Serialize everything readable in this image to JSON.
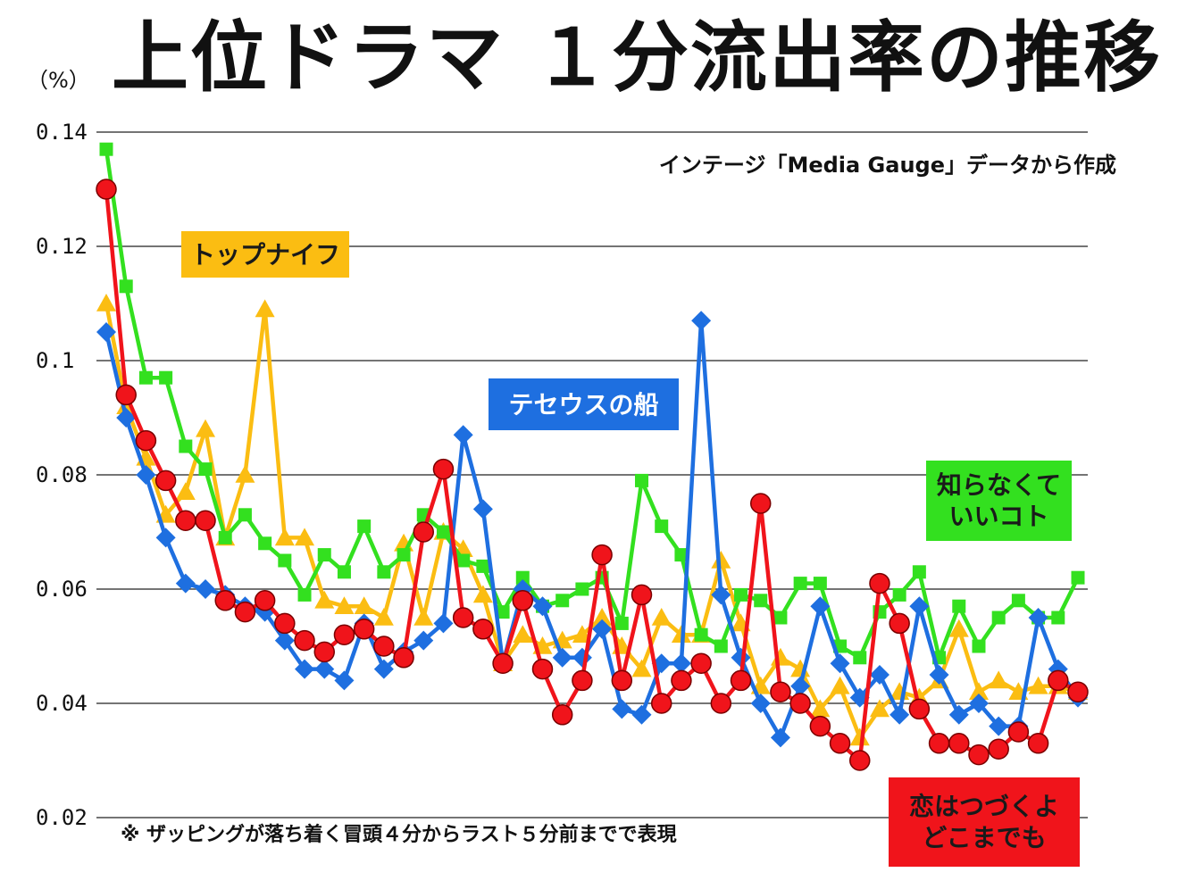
{
  "chart_data": {
    "type": "line",
    "title": "上位ドラマ １分流出率の推移",
    "ylabel": "（%）",
    "xlabel": "",
    "ylim": [
      0.02,
      0.14
    ],
    "yticks": [
      "0.14",
      "0.12",
      "0.1",
      "0.08",
      "0.06",
      "0.04",
      "0.02"
    ],
    "grid": true,
    "source": "インテージ「Media Gauge」データから作成",
    "footnote": "※ ザッピングが落ち着く冒頭４分からラスト５分前までで表現",
    "series": [
      {
        "name": "恋はつづくよどこまでも",
        "label_lines": [
          "恋はつづくよ",
          "どこまでも"
        ],
        "color": "#f0141b",
        "marker": "circle",
        "values": [
          0.13,
          0.094,
          0.086,
          0.079,
          0.072,
          0.072,
          0.058,
          0.056,
          0.058,
          0.054,
          0.051,
          0.049,
          0.052,
          0.053,
          0.05,
          0.048,
          0.07,
          0.081,
          0.055,
          0.053,
          0.047,
          0.058,
          0.046,
          0.038,
          0.044,
          0.066,
          0.044,
          0.059,
          0.04,
          0.044,
          0.047,
          0.04,
          0.044,
          0.075,
          0.042,
          0.04,
          0.036,
          0.033,
          0.03,
          0.061,
          0.054,
          0.039,
          0.033,
          0.033,
          0.031,
          0.032,
          0.035,
          0.033,
          0.044,
          0.042
        ]
      },
      {
        "name": "テセウスの船",
        "label_lines": [
          "テセウスの船"
        ],
        "color": "#1e6fe0",
        "marker": "diamond",
        "values": [
          0.105,
          0.09,
          0.08,
          0.069,
          0.061,
          0.06,
          0.059,
          0.057,
          0.056,
          0.051,
          0.046,
          0.046,
          0.044,
          0.054,
          0.046,
          0.049,
          0.051,
          0.054,
          0.087,
          0.074,
          0.047,
          0.06,
          0.057,
          0.048,
          0.048,
          0.053,
          0.039,
          0.038,
          0.047,
          0.047,
          0.107,
          0.059,
          0.048,
          0.04,
          0.034,
          0.043,
          0.057,
          0.047,
          0.041,
          0.045,
          0.038,
          0.057,
          0.045,
          0.038,
          0.04,
          0.036,
          0.036,
          0.055,
          0.046,
          0.041
        ]
      },
      {
        "name": "トップナイフ",
        "label_lines": [
          "トップナイフ"
        ],
        "color": "#fbbd12",
        "marker": "triangle",
        "values": [
          0.11,
          0.092,
          0.083,
          0.073,
          0.077,
          0.088,
          0.069,
          0.08,
          0.109,
          0.069,
          0.069,
          0.058,
          0.057,
          0.057,
          0.055,
          0.068,
          0.055,
          0.07,
          0.067,
          0.059,
          0.047,
          0.052,
          0.05,
          0.051,
          0.052,
          0.055,
          0.05,
          0.046,
          0.055,
          0.052,
          0.052,
          0.065,
          0.054,
          0.043,
          0.048,
          0.046,
          0.039,
          0.043,
          0.034,
          0.039,
          0.042,
          0.041,
          0.044,
          0.053,
          0.042,
          0.044,
          0.042,
          0.043,
          0.043,
          0.042
        ]
      },
      {
        "name": "知らなくていいコト",
        "label_lines": [
          "知らなくて",
          "いいコト"
        ],
        "color": "#33e01f",
        "marker": "square",
        "values": [
          0.137,
          0.113,
          0.097,
          0.097,
          0.085,
          0.081,
          0.069,
          0.073,
          0.068,
          0.065,
          0.059,
          0.066,
          0.063,
          0.071,
          0.063,
          0.066,
          0.073,
          0.07,
          0.065,
          0.064,
          0.056,
          0.062,
          0.057,
          0.058,
          0.06,
          0.062,
          0.054,
          0.079,
          0.071,
          0.066,
          0.052,
          0.05,
          0.059,
          0.058,
          0.055,
          0.061,
          0.061,
          0.05,
          0.048,
          0.056,
          0.059,
          0.063,
          0.048,
          0.057,
          0.05,
          0.055,
          0.058,
          0.055,
          0.055,
          0.062
        ]
      }
    ]
  }
}
